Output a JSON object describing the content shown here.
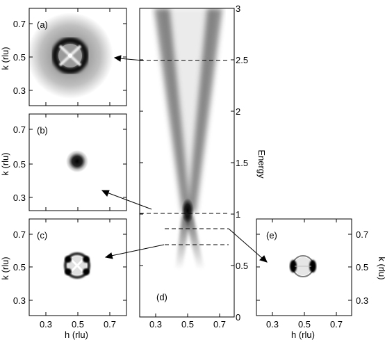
{
  "panels": {
    "a": {
      "label": "(a)",
      "ylabel": "k  (rlu)",
      "yticks": [
        "0.7",
        "0.5",
        "0.3"
      ]
    },
    "b": {
      "label": "(b)",
      "ylabel": "k  (rlu)",
      "yticks": [
        "0.7",
        "0.5",
        "0.3"
      ]
    },
    "c": {
      "label": "(c)",
      "ylabel": "k  (rlu)",
      "yticks": [
        "0.7",
        "0.5",
        "0.3"
      ],
      "xlabel": "h  (rlu)",
      "xticks": [
        "0.3",
        "0.5",
        "0.7"
      ]
    },
    "d": {
      "label": "(d)",
      "ylabel": "Energy",
      "xticks": [
        "0.3",
        "0.5",
        "0.7"
      ],
      "yticks": [
        "0",
        "0.5",
        "1",
        "1.5",
        "2",
        "2.5",
        "3"
      ]
    },
    "e": {
      "label": "(e)",
      "ylabel": "k  (rlu)",
      "yticks": [
        "0.7",
        "0.5",
        "0.3"
      ],
      "xlabel": "h  (rlu)",
      "xticks": [
        "0.3",
        "0.5",
        "0.7"
      ]
    }
  },
  "chart_data": [
    {
      "type": "heatmap",
      "panel": "a",
      "energy": 2.5,
      "xlim": [
        0.2,
        0.8
      ],
      "ylim": [
        0.2,
        0.8
      ],
      "feature": "dark ring centered at (0.5, 0.5) with four-fold intensity inside"
    },
    {
      "type": "heatmap",
      "panel": "b",
      "energy": 1.0,
      "xlim": [
        0.2,
        0.8
      ],
      "ylim": [
        0.2,
        0.8
      ],
      "feature": "compact dark spot at (0.5, 0.5)"
    },
    {
      "type": "heatmap",
      "panel": "c",
      "energy": 0.7,
      "xlim": [
        0.2,
        0.8
      ],
      "ylim": [
        0.2,
        0.8
      ],
      "feature": "small ring with four dark lobes at (0.5, 0.5)"
    },
    {
      "type": "heatmap",
      "panel": "d",
      "xlim": [
        0.2,
        0.8
      ],
      "ylim": [
        0,
        3
      ],
      "feature": "dispersion cone: resonance at energy 1 and h = 0.5, branches opening upward and downward",
      "cuts": [
        2.5,
        1.0,
        0.85,
        0.7
      ]
    },
    {
      "type": "heatmap",
      "panel": "e",
      "energy": 0.85,
      "xlim": [
        0.2,
        0.8
      ],
      "ylim": [
        0.2,
        0.8
      ],
      "feature": "ring with dark spots on the left and right sides at (0.5, 0.5)"
    }
  ]
}
